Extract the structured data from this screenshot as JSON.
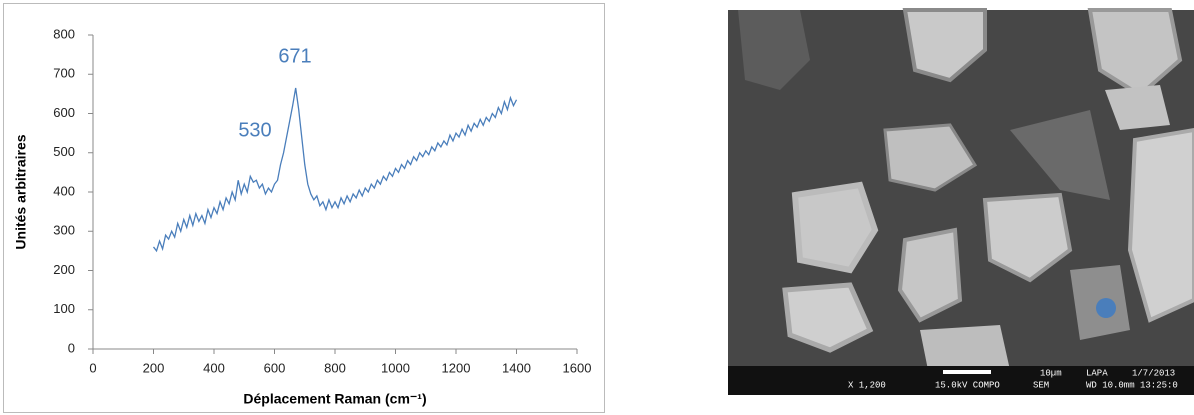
{
  "chart_data": {
    "type": "line",
    "x_label": "Déplacement Raman (cm⁻¹)",
    "y_label": "Unités arbitraires",
    "annotations": [
      "530",
      "671"
    ],
    "color": "#4a7ebb",
    "xlim": [
      0,
      1600
    ],
    "xticks": [
      0,
      200,
      400,
      600,
      800,
      1000,
      1200,
      1400,
      1600
    ],
    "ylim": [
      0,
      800
    ],
    "yticks": [
      0,
      100,
      200,
      300,
      400,
      500,
      600,
      700,
      800
    ],
    "x": [
      200,
      210,
      220,
      230,
      240,
      250,
      260,
      270,
      280,
      290,
      300,
      310,
      320,
      330,
      340,
      350,
      360,
      370,
      380,
      390,
      400,
      410,
      420,
      430,
      440,
      450,
      460,
      470,
      480,
      490,
      500,
      510,
      520,
      530,
      540,
      550,
      560,
      570,
      580,
      590,
      600,
      610,
      620,
      630,
      640,
      650,
      660,
      670,
      680,
      690,
      700,
      710,
      720,
      730,
      740,
      750,
      760,
      770,
      780,
      790,
      800,
      810,
      820,
      830,
      840,
      850,
      860,
      870,
      880,
      890,
      900,
      910,
      920,
      930,
      940,
      950,
      960,
      970,
      980,
      990,
      1000,
      1010,
      1020,
      1030,
      1040,
      1050,
      1060,
      1070,
      1080,
      1090,
      1100,
      1110,
      1120,
      1130,
      1140,
      1150,
      1160,
      1170,
      1180,
      1190,
      1200,
      1210,
      1220,
      1230,
      1240,
      1250,
      1260,
      1270,
      1280,
      1290,
      1300,
      1310,
      1320,
      1330,
      1340,
      1350,
      1360,
      1370,
      1380,
      1390,
      1400
    ],
    "values": [
      260,
      250,
      275,
      255,
      290,
      280,
      300,
      285,
      320,
      300,
      330,
      310,
      340,
      315,
      345,
      325,
      340,
      320,
      355,
      335,
      360,
      345,
      375,
      355,
      385,
      370,
      400,
      380,
      430,
      395,
      420,
      400,
      440,
      425,
      430,
      410,
      420,
      395,
      410,
      400,
      420,
      430,
      470,
      500,
      540,
      580,
      620,
      665,
      610,
      540,
      470,
      420,
      395,
      380,
      390,
      365,
      375,
      355,
      380,
      360,
      375,
      360,
      385,
      370,
      390,
      375,
      395,
      385,
      405,
      390,
      410,
      400,
      420,
      410,
      430,
      420,
      440,
      430,
      450,
      440,
      460,
      450,
      470,
      460,
      480,
      470,
      490,
      480,
      500,
      490,
      505,
      495,
      515,
      505,
      525,
      515,
      530,
      520,
      545,
      530,
      550,
      540,
      560,
      545,
      570,
      555,
      575,
      565,
      585,
      570,
      590,
      580,
      600,
      590,
      615,
      600,
      630,
      610,
      640,
      620,
      635
    ]
  },
  "image": {
    "scale_bar": "10µm",
    "lab": "LAPA",
    "date": "1/7/2013",
    "magnification": "X 1,200",
    "voltage": "15.0kV COMPO",
    "detector": "SEM",
    "wd_time": "WD 10.0mm 13:25:0"
  }
}
